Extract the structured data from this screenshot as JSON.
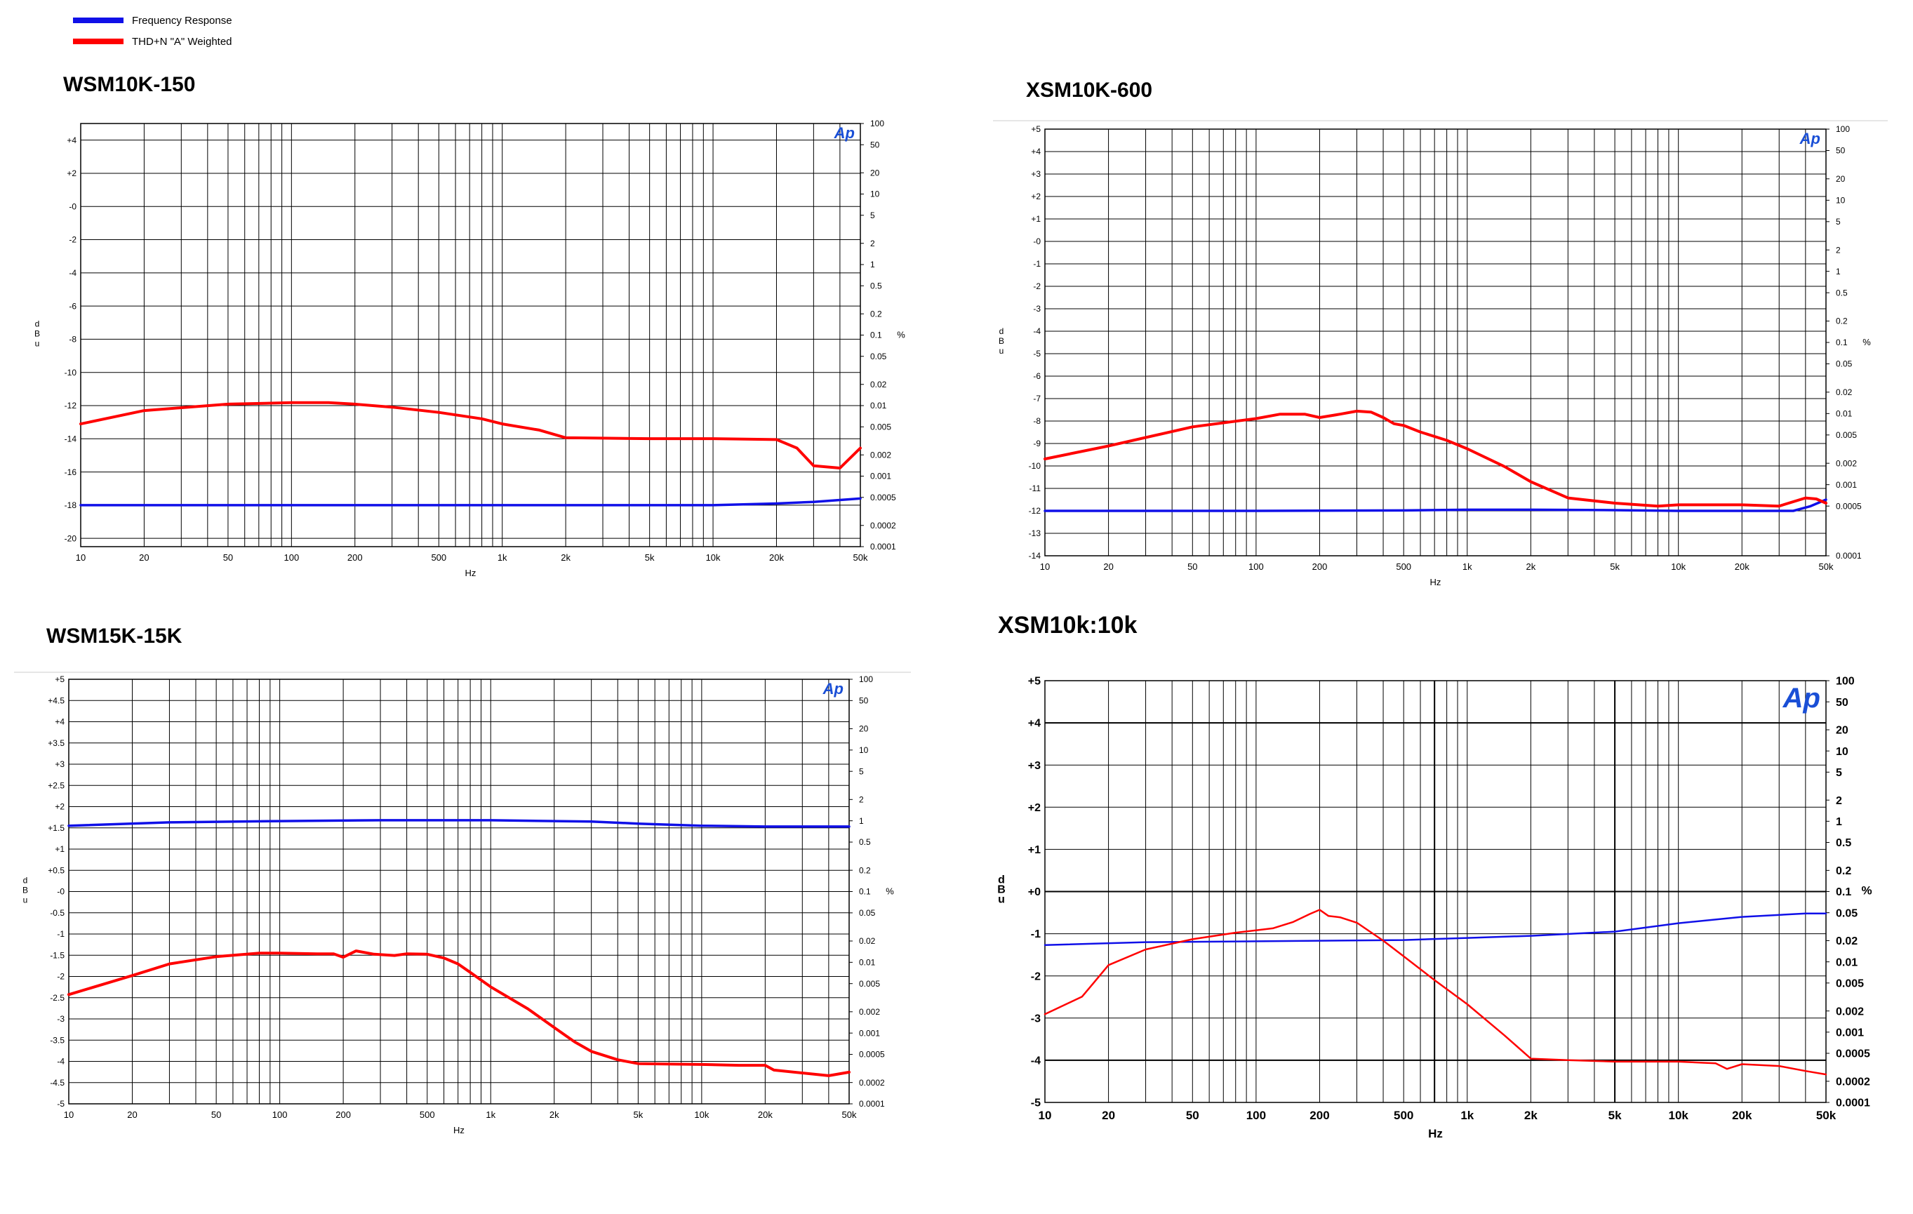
{
  "legend": {
    "items": [
      {
        "label": "Frequency Response",
        "color": "#1010e8"
      },
      {
        "label": "THD+N \"A\" Weighted",
        "color": "#ff0000"
      }
    ]
  },
  "logo_text": "Ap",
  "chart_data": [
    {
      "type": "line",
      "title": "WSM10K-150",
      "xlabel": "Hz",
      "ylabel": "dBu",
      "y2label": "%",
      "xscale": "log",
      "xlim": [
        10,
        50000
      ],
      "x_tick_labels": [
        "10",
        "20",
        "50",
        "100",
        "200",
        "500",
        "1k",
        "2k",
        "5k",
        "10k",
        "20k",
        "50k"
      ],
      "ylim": [
        -20.5,
        5
      ],
      "y_tick_labels": [
        "+4",
        "+2",
        "-0",
        "-2",
        "-4",
        "-6",
        "-8",
        "-10",
        "-12",
        "-14",
        "-16",
        "-18",
        "-20"
      ],
      "y2_tick_labels": [
        "100",
        "50",
        "20",
        "10",
        "5",
        "2",
        "1",
        "0.5",
        "0.2",
        "0.1",
        "0.05",
        "0.02",
        "0.01",
        "0.005",
        "0.002",
        "0.001",
        "0.0005",
        "0.0002",
        "0.0001"
      ],
      "grid": true,
      "series": [
        {
          "name": "Frequency Response",
          "axis": "left",
          "color": "#1010e8",
          "x": [
            10,
            100,
            1000,
            10000,
            20000,
            30000,
            50000
          ],
          "y": [
            -18.0,
            -18.0,
            -18.0,
            -18.0,
            -17.9,
            -17.8,
            -17.6
          ]
        },
        {
          "name": "THD+N \"A\" Weighted",
          "axis": "right",
          "color": "#ff0000",
          "x": [
            10,
            20,
            50,
            100,
            150,
            200,
            300,
            500,
            800,
            1000,
            1500,
            2000,
            5000,
            10000,
            20000,
            25000,
            30000,
            40000,
            50000
          ],
          "y": [
            0.0055,
            0.0085,
            0.0105,
            0.011,
            0.011,
            0.0105,
            0.0095,
            0.008,
            0.0065,
            0.0055,
            0.0045,
            0.0035,
            0.0034,
            0.0034,
            0.0033,
            0.0025,
            0.0014,
            0.0013,
            0.0025
          ]
        }
      ]
    },
    {
      "type": "line",
      "title": "XSM10K-600",
      "xlabel": "Hz",
      "ylabel": "dBu",
      "y2label": "%",
      "xscale": "log",
      "xlim": [
        10,
        50000
      ],
      "x_tick_labels": [
        "10",
        "20",
        "50",
        "100",
        "200",
        "500",
        "1k",
        "2k",
        "5k",
        "10k",
        "20k",
        "50k"
      ],
      "ylim": [
        -14,
        5
      ],
      "y_tick_labels": [
        "+5",
        "+4",
        "+3",
        "+2",
        "+1",
        "-0",
        "-1",
        "-2",
        "-3",
        "-4",
        "-5",
        "-6",
        "-7",
        "-8",
        "-9",
        "-10",
        "-11",
        "-12",
        "-13",
        "-14"
      ],
      "y2_tick_labels": [
        "100",
        "50",
        "20",
        "10",
        "5",
        "2",
        "1",
        "0.5",
        "0.2",
        "0.1",
        "0.05",
        "0.02",
        "0.01",
        "0.005",
        "0.002",
        "0.001",
        "0.0005",
        "0.0001"
      ],
      "grid": true,
      "series": [
        {
          "name": "Frequency Response",
          "axis": "left",
          "color": "#1010e8",
          "x": [
            10,
            100,
            500,
            1000,
            2000,
            5000,
            10000,
            20000,
            35000,
            42000,
            50000
          ],
          "y": [
            -12.0,
            -12.0,
            -11.98,
            -11.95,
            -11.95,
            -11.97,
            -12.0,
            -12.0,
            -12.0,
            -11.8,
            -11.5
          ]
        },
        {
          "name": "THD+N \"A\" Weighted",
          "axis": "right",
          "color": "#ff0000",
          "x": [
            10,
            20,
            50,
            100,
            130,
            170,
            200,
            250,
            300,
            350,
            400,
            450,
            500,
            600,
            800,
            1000,
            1500,
            2000,
            3000,
            5000,
            8000,
            10000,
            20000,
            30000,
            40000,
            45000,
            50000
          ],
          "y": [
            0.0023,
            0.0035,
            0.0065,
            0.0085,
            0.0098,
            0.0098,
            0.0088,
            0.0098,
            0.0108,
            0.0105,
            0.0088,
            0.0072,
            0.0068,
            0.0055,
            0.0042,
            0.0032,
            0.0018,
            0.0011,
            0.00065,
            0.00055,
            0.0005,
            0.00052,
            0.00052,
            0.0005,
            0.00065,
            0.00063,
            0.00055
          ]
        }
      ]
    },
    {
      "type": "line",
      "title": "WSM15K-15K",
      "xlabel": "Hz",
      "ylabel": "dBu",
      "y2label": "%",
      "xscale": "log",
      "xlim": [
        10,
        50000
      ],
      "x_tick_labels": [
        "10",
        "20",
        "50",
        "100",
        "200",
        "500",
        "1k",
        "2k",
        "5k",
        "10k",
        "20k",
        "50k"
      ],
      "ylim": [
        -5,
        5
      ],
      "y_tick_labels": [
        "+5",
        "+4.5",
        "+4",
        "+3.5",
        "+3",
        "+2.5",
        "+2",
        "+1.5",
        "+1",
        "+0.5",
        "-0",
        "-0.5",
        "-1",
        "-1.5",
        "-2",
        "-2.5",
        "-3",
        "-3.5",
        "-4",
        "-4.5",
        "-5"
      ],
      "y2_tick_labels": [
        "100",
        "50",
        "20",
        "10",
        "5",
        "2",
        "1",
        "0.5",
        "0.2",
        "0.1",
        "0.05",
        "0.02",
        "0.01",
        "0.005",
        "0.002",
        "0.001",
        "0.0005",
        "0.0002",
        "0.0001"
      ],
      "grid": true,
      "series": [
        {
          "name": "Frequency Response",
          "axis": "left",
          "color": "#1010e8",
          "x": [
            10,
            30,
            100,
            300,
            1000,
            3000,
            5000,
            10000,
            20000,
            50000
          ],
          "y": [
            1.55,
            1.63,
            1.66,
            1.68,
            1.68,
            1.65,
            1.6,
            1.55,
            1.53,
            1.53
          ]
        },
        {
          "name": "THD+N \"A\" Weighted",
          "axis": "right",
          "color": "#ff0000",
          "x": [
            10,
            20,
            30,
            50,
            80,
            100,
            150,
            180,
            200,
            230,
            280,
            350,
            400,
            500,
            600,
            700,
            800,
            1000,
            1500,
            2000,
            2500,
            3000,
            4000,
            5000,
            10000,
            15000,
            20000,
            22000,
            40000,
            50000
          ],
          "y": [
            0.0035,
            0.0065,
            0.0095,
            0.012,
            0.0135,
            0.0135,
            0.0132,
            0.0132,
            0.0118,
            0.0145,
            0.013,
            0.0125,
            0.0132,
            0.013,
            0.0115,
            0.0095,
            0.0072,
            0.0045,
            0.0022,
            0.0012,
            0.00075,
            0.00055,
            0.00042,
            0.00037,
            0.00036,
            0.00035,
            0.00035,
            0.0003,
            0.00025,
            0.00028
          ]
        }
      ]
    },
    {
      "type": "line",
      "title": "XSM10k:10k",
      "xlabel": "Hz",
      "ylabel": "dBu",
      "y2label": "%",
      "xscale": "log",
      "xlim": [
        10,
        50000
      ],
      "x_tick_labels": [
        "10",
        "20",
        "50",
        "100",
        "200",
        "500",
        "1k",
        "2k",
        "5k",
        "10k",
        "20k",
        "50k"
      ],
      "ylim": [
        -5,
        5
      ],
      "y_tick_labels": [
        "+5",
        "+4",
        "+3",
        "+2",
        "+1",
        "+0",
        "-1",
        "-2",
        "-3",
        "-4",
        "-5"
      ],
      "y2_tick_labels": [
        "100",
        "50",
        "20",
        "10",
        "5",
        "2",
        "1",
        "0.5",
        "0.2",
        "0.1",
        "0.05",
        "0.02",
        "0.01",
        "0.005",
        "0.002",
        "0.001",
        "0.0005",
        "0.0002",
        "0.0001"
      ],
      "grid": true,
      "series": [
        {
          "name": "Frequency Response",
          "axis": "left",
          "color": "#1010e8",
          "x": [
            10,
            30,
            100,
            500,
            1000,
            2000,
            5000,
            10000,
            20000,
            40000,
            50000
          ],
          "y": [
            -1.27,
            -1.2,
            -1.18,
            -1.15,
            -1.1,
            -1.05,
            -0.95,
            -0.75,
            -0.6,
            -0.52,
            -0.52
          ]
        },
        {
          "name": "THD+N \"A\" Weighted",
          "axis": "right",
          "color": "#ff0000",
          "x": [
            10,
            15,
            17,
            20,
            30,
            50,
            80,
            120,
            150,
            180,
            200,
            220,
            250,
            300,
            400,
            500,
            700,
            1000,
            1500,
            2000,
            3000,
            5000,
            10000,
            15000,
            17000,
            20000,
            30000,
            40000,
            50000
          ],
          "y": [
            0.0018,
            0.0032,
            0.005,
            0.009,
            0.015,
            0.021,
            0.026,
            0.03,
            0.037,
            0.048,
            0.055,
            0.045,
            0.043,
            0.036,
            0.02,
            0.012,
            0.0055,
            0.0025,
            0.0009,
            0.00042,
            0.0004,
            0.00038,
            0.00038,
            0.00036,
            0.0003,
            0.00035,
            0.00033,
            0.00028,
            0.00025
          ]
        }
      ]
    }
  ]
}
